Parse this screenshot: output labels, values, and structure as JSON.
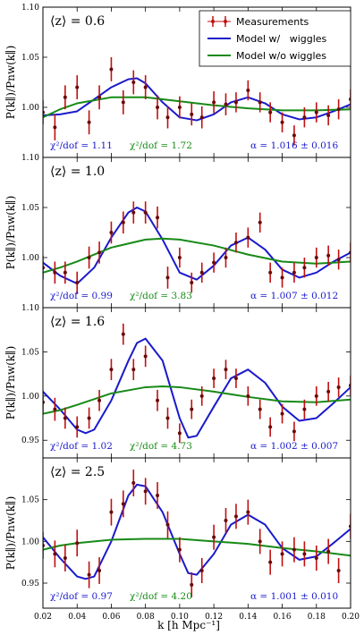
{
  "figure": {
    "xlabel": "k [h Mpc⁻¹]",
    "ylabel": "P(k∥)/Pnw(k∥)",
    "colors": {
      "measurement": "#c01010",
      "model_wiggles": "#1a1acc",
      "model_nowiggles": "#178a17"
    },
    "legend": {
      "items": [
        {
          "label": "Measurements",
          "kind": "errorbar",
          "color": "#c01010"
        },
        {
          "label": "Model w/   wiggles",
          "kind": "line",
          "color": "#1a1acc"
        },
        {
          "label": "Model w/o wiggles",
          "kind": "line",
          "color": "#178a17"
        }
      ]
    }
  },
  "chart_data": [
    {
      "type": "scatter",
      "panel_label": "⟨z⟩ = 0.6",
      "xlabel": "",
      "ylabel": "P(k∥)/Pnw(k∥)",
      "xlim": [
        0.02,
        0.2
      ],
      "ylim": [
        0.95,
        1.1
      ],
      "xticks": [
        "0.02",
        "0.04",
        "0.06",
        "0.08",
        "0.10",
        "0.12",
        "0.14",
        "0.16",
        "0.18",
        "0.20"
      ],
      "yticks": [
        "1.10",
        "1.05",
        "1.00"
      ],
      "stats": {
        "chi_wiggles": "χ²/dof = 1.11",
        "chi_nowiggles": "χ²/dof = 1.72",
        "alpha": "α = 1.016 ± 0.016"
      },
      "series": [
        {
          "name": "Measurements",
          "kind": "points",
          "x": [
            0.02,
            0.027,
            0.033,
            0.04,
            0.047,
            0.053,
            0.06,
            0.067,
            0.073,
            0.08,
            0.087,
            0.093,
            0.1,
            0.107,
            0.113,
            0.12,
            0.127,
            0.133,
            0.14,
            0.147,
            0.153,
            0.16,
            0.167,
            0.173,
            0.18,
            0.187,
            0.193,
            0.2
          ],
          "y": [
            0.995,
            0.98,
            1.01,
            1.02,
            0.985,
            1.01,
            1.038,
            1.005,
            1.025,
            1.02,
            1.0,
            0.99,
            1.0,
            0.993,
            0.99,
            1.005,
            1.003,
            1.005,
            1.017,
            1.005,
            0.995,
            0.985,
            0.972,
            0.99,
            0.995,
            0.992,
            0.998,
            1.008
          ],
          "err": [
            0.012,
            0.013,
            0.012,
            0.012,
            0.012,
            0.012,
            0.012,
            0.012,
            0.012,
            0.012,
            0.012,
            0.011,
            0.011,
            0.011,
            0.011,
            0.011,
            0.011,
            0.01,
            0.01,
            0.01,
            0.01,
            0.01,
            0.01,
            0.01,
            0.01,
            0.01,
            0.01,
            0.01
          ]
        },
        {
          "name": "Model w/   wiggles",
          "kind": "line",
          "x": [
            0.02,
            0.03,
            0.04,
            0.05,
            0.06,
            0.07,
            0.075,
            0.08,
            0.09,
            0.1,
            0.11,
            0.12,
            0.13,
            0.14,
            0.15,
            0.16,
            0.17,
            0.18,
            0.19,
            0.2
          ],
          "y": [
            0.992,
            0.993,
            0.996,
            1.008,
            1.02,
            1.028,
            1.029,
            1.024,
            1.005,
            0.99,
            0.987,
            0.993,
            1.005,
            1.01,
            1.004,
            0.993,
            0.988,
            0.99,
            0.996,
            1.003
          ]
        },
        {
          "name": "Model w/o wiggles",
          "kind": "line",
          "x": [
            0.02,
            0.03,
            0.04,
            0.06,
            0.08,
            0.1,
            0.12,
            0.14,
            0.16,
            0.18,
            0.2
          ],
          "y": [
            0.99,
            0.998,
            1.004,
            1.01,
            1.01,
            1.006,
            1.002,
            0.999,
            0.997,
            0.997,
            0.998
          ]
        }
      ]
    },
    {
      "type": "scatter",
      "panel_label": "⟨z⟩ = 1.0",
      "xlabel": "",
      "ylabel": "P(k∥)/Pnw(k∥)",
      "xlim": [
        0.02,
        0.2
      ],
      "ylim": [
        0.95,
        1.1
      ],
      "xticks": [
        "0.02",
        "0.04",
        "0.06",
        "0.08",
        "0.10",
        "0.12",
        "0.14",
        "0.16",
        "0.18",
        "0.20"
      ],
      "yticks": [
        "1.10",
        "1.05",
        "1.00"
      ],
      "stats": {
        "chi_wiggles": "χ²/dof = 0.99",
        "chi_nowiggles": "χ²/dof = 3.83",
        "alpha": "α = 1.007 ± 0.012"
      },
      "series": [
        {
          "name": "Measurements",
          "kind": "points",
          "x": [
            0.02,
            0.027,
            0.033,
            0.04,
            0.047,
            0.053,
            0.06,
            0.067,
            0.073,
            0.08,
            0.087,
            0.093,
            0.1,
            0.107,
            0.113,
            0.12,
            0.127,
            0.133,
            0.14,
            0.147,
            0.153,
            0.16,
            0.167,
            0.173,
            0.18,
            0.187,
            0.193,
            0.2
          ],
          "y": [
            0.99,
            0.985,
            0.985,
            0.975,
            1.0,
            1.005,
            1.025,
            1.035,
            1.045,
            1.045,
            1.04,
            0.98,
            1.0,
            0.975,
            0.985,
            0.995,
            1.0,
            1.015,
            1.02,
            1.035,
            0.985,
            0.98,
            0.985,
            0.99,
            1.0,
            1.002,
            0.998,
            1.005
          ],
          "err": [
            0.012,
            0.011,
            0.011,
            0.011,
            0.011,
            0.011,
            0.011,
            0.011,
            0.011,
            0.011,
            0.011,
            0.011,
            0.01,
            0.01,
            0.01,
            0.01,
            0.01,
            0.01,
            0.01,
            0.01,
            0.01,
            0.01,
            0.01,
            0.01,
            0.01,
            0.01,
            0.01,
            0.01
          ]
        },
        {
          "name": "Model w/   wiggles",
          "kind": "line",
          "x": [
            0.02,
            0.03,
            0.04,
            0.05,
            0.06,
            0.07,
            0.075,
            0.08,
            0.09,
            0.1,
            0.11,
            0.12,
            0.13,
            0.14,
            0.15,
            0.16,
            0.17,
            0.18,
            0.19,
            0.2
          ],
          "y": [
            0.995,
            0.982,
            0.974,
            0.99,
            1.02,
            1.045,
            1.05,
            1.046,
            1.018,
            0.985,
            0.978,
            0.992,
            1.012,
            1.02,
            1.008,
            0.988,
            0.98,
            0.985,
            0.996,
            1.005
          ]
        },
        {
          "name": "Model w/o wiggles",
          "kind": "line",
          "x": [
            0.02,
            0.03,
            0.04,
            0.06,
            0.08,
            0.09,
            0.1,
            0.12,
            0.14,
            0.16,
            0.18,
            0.2
          ],
          "y": [
            0.985,
            0.99,
            0.996,
            1.01,
            1.018,
            1.019,
            1.018,
            1.012,
            1.003,
            0.996,
            0.994,
            0.996
          ]
        }
      ]
    },
    {
      "type": "scatter",
      "panel_label": "⟨z⟩ = 1.6",
      "xlabel": "",
      "ylabel": "P(k∥)/Pnw(k∥)",
      "xlim": [
        0.02,
        0.2
      ],
      "ylim": [
        0.93,
        1.1
      ],
      "xticks": [
        "0.02",
        "0.04",
        "0.06",
        "0.08",
        "0.10",
        "0.12",
        "0.14",
        "0.16",
        "0.18",
        "0.20"
      ],
      "yticks": [
        "1.10",
        "1.05",
        "1.00",
        "0.95"
      ],
      "stats": {
        "chi_wiggles": "χ²/dof = 1.02",
        "chi_nowiggles": "χ²/dof = 4.73",
        "alpha": "α = 1.002 ± 0.007"
      },
      "series": [
        {
          "name": "Measurements",
          "kind": "points",
          "x": [
            0.02,
            0.027,
            0.033,
            0.04,
            0.047,
            0.053,
            0.06,
            0.067,
            0.073,
            0.08,
            0.087,
            0.093,
            0.1,
            0.107,
            0.113,
            0.12,
            0.127,
            0.133,
            0.14,
            0.147,
            0.153,
            0.16,
            0.167,
            0.173,
            0.18,
            0.187,
            0.193,
            0.2
          ],
          "y": [
            0.993,
            0.985,
            0.975,
            0.965,
            0.975,
            0.995,
            1.03,
            1.07,
            1.03,
            1.045,
            0.995,
            0.975,
            0.958,
            0.985,
            1.0,
            1.02,
            1.03,
            1.02,
            1.0,
            0.985,
            0.965,
            0.98,
            0.96,
            0.985,
            1.0,
            1.005,
            1.01,
            1.012
          ],
          "err": [
            0.013,
            0.013,
            0.012,
            0.012,
            0.012,
            0.012,
            0.012,
            0.012,
            0.012,
            0.012,
            0.012,
            0.012,
            0.011,
            0.011,
            0.011,
            0.011,
            0.011,
            0.011,
            0.011,
            0.011,
            0.011,
            0.011,
            0.011,
            0.011,
            0.011,
            0.011,
            0.011,
            0.011
          ]
        },
        {
          "name": "Model w/   wiggles",
          "kind": "line",
          "x": [
            0.02,
            0.03,
            0.04,
            0.045,
            0.05,
            0.06,
            0.07,
            0.075,
            0.08,
            0.09,
            0.1,
            0.105,
            0.11,
            0.12,
            0.13,
            0.14,
            0.15,
            0.16,
            0.17,
            0.18,
            0.19,
            0.2
          ],
          "y": [
            1.005,
            0.985,
            0.962,
            0.958,
            0.962,
            0.995,
            1.04,
            1.06,
            1.065,
            1.04,
            0.975,
            0.953,
            0.955,
            0.988,
            1.02,
            1.03,
            1.015,
            0.988,
            0.972,
            0.975,
            0.992,
            1.01
          ]
        },
        {
          "name": "Model w/o wiggles",
          "kind": "line",
          "x": [
            0.02,
            0.03,
            0.04,
            0.06,
            0.08,
            0.09,
            0.1,
            0.12,
            0.14,
            0.16,
            0.18,
            0.2
          ],
          "y": [
            0.98,
            0.984,
            0.99,
            1.003,
            1.01,
            1.011,
            1.01,
            1.005,
            0.999,
            0.994,
            0.993,
            0.996
          ]
        }
      ]
    },
    {
      "type": "scatter",
      "panel_label": "⟨z⟩ = 2.5",
      "xlabel": "k [h Mpc⁻¹]",
      "ylabel": "P(k∥)/Pnw(k∥)",
      "xlim": [
        0.02,
        0.2
      ],
      "ylim": [
        0.92,
        1.1
      ],
      "xticks": [
        "0.02",
        "0.04",
        "0.06",
        "0.08",
        "0.10",
        "0.12",
        "0.14",
        "0.16",
        "0.18",
        "0.20"
      ],
      "yticks": [
        "1.05",
        "1.00",
        "0.95"
      ],
      "stats": {
        "chi_wiggles": "χ²/dof = 0.97",
        "chi_nowiggles": "χ²/dof = 4.20",
        "alpha": "α = 1.001 ± 0.010"
      },
      "series": [
        {
          "name": "Measurements",
          "kind": "points",
          "x": [
            0.02,
            0.027,
            0.033,
            0.04,
            0.047,
            0.053,
            0.06,
            0.067,
            0.073,
            0.08,
            0.087,
            0.093,
            0.1,
            0.107,
            0.113,
            0.12,
            0.127,
            0.133,
            0.14,
            0.147,
            0.153,
            0.16,
            0.167,
            0.173,
            0.18,
            0.187,
            0.193,
            0.2
          ],
          "y": [
            0.995,
            0.985,
            0.98,
            0.998,
            0.96,
            0.965,
            1.035,
            1.045,
            1.07,
            1.06,
            1.055,
            1.02,
            0.99,
            0.948,
            0.965,
            1.005,
            1.025,
            1.03,
            1.035,
            1.0,
            0.975,
            0.985,
            0.99,
            0.985,
            0.98,
            0.988,
            0.965,
            1.018
          ],
          "err": [
            0.016,
            0.016,
            0.016,
            0.016,
            0.016,
            0.016,
            0.016,
            0.016,
            0.016,
            0.016,
            0.016,
            0.016,
            0.015,
            0.015,
            0.015,
            0.015,
            0.015,
            0.015,
            0.015,
            0.015,
            0.015,
            0.015,
            0.015,
            0.015,
            0.015,
            0.015,
            0.015,
            0.015
          ]
        },
        {
          "name": "Model w/   wiggles",
          "kind": "line",
          "x": [
            0.02,
            0.03,
            0.04,
            0.045,
            0.05,
            0.06,
            0.07,
            0.075,
            0.08,
            0.09,
            0.1,
            0.105,
            0.11,
            0.12,
            0.13,
            0.14,
            0.15,
            0.16,
            0.17,
            0.18,
            0.19,
            0.2
          ],
          "y": [
            1.005,
            0.98,
            0.958,
            0.955,
            0.958,
            1.0,
            1.055,
            1.068,
            1.066,
            1.035,
            0.985,
            0.962,
            0.96,
            0.985,
            1.02,
            1.032,
            1.02,
            0.992,
            0.978,
            0.982,
            0.998,
            1.015
          ]
        },
        {
          "name": "Model w/o wiggles",
          "kind": "line",
          "x": [
            0.02,
            0.03,
            0.04,
            0.06,
            0.08,
            0.1,
            0.12,
            0.14,
            0.16,
            0.18,
            0.2
          ],
          "y": [
            0.99,
            0.995,
            0.998,
            1.002,
            1.003,
            1.003,
            1.0,
            0.997,
            0.992,
            0.988,
            0.983
          ]
        }
      ]
    }
  ]
}
